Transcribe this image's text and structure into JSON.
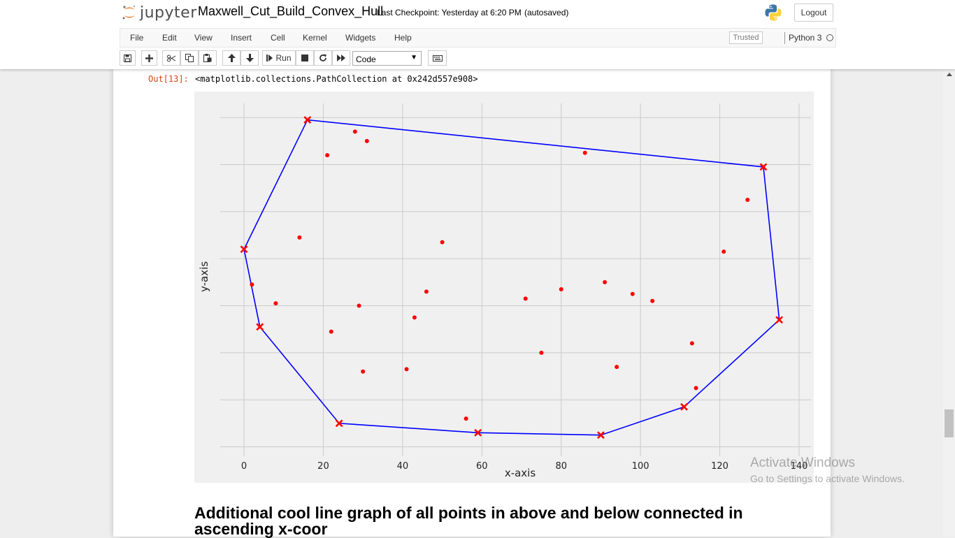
{
  "header": {
    "logo_text": "jupyter",
    "notebook_name": "Maxwell_Cut_Build_Convex_Hull",
    "checkpoint": "Last Checkpoint: Yesterday at 6:20 PM",
    "autosave_status": "(autosaved)",
    "logout_label": "Logout"
  },
  "menu": {
    "items": [
      "File",
      "Edit",
      "View",
      "Insert",
      "Cell",
      "Kernel",
      "Widgets",
      "Help"
    ],
    "trusted_label": "Trusted",
    "kernel_name": "Python 3"
  },
  "toolbar": {
    "run_label": "Run",
    "cell_type": "Code"
  },
  "output": {
    "prompt": "Out[13]:",
    "text": "<matplotlib.collections.PathCollection at 0x242d557e908>"
  },
  "chart_data": {
    "type": "scatter",
    "xlabel": "x-axis",
    "ylabel": "y-axis",
    "xlim": [
      -6,
      143
    ],
    "ylim": [
      -4,
      146
    ],
    "xticks": [
      0,
      20,
      40,
      60,
      80,
      100,
      120,
      140
    ],
    "yticks": [
      0,
      20,
      40,
      60,
      80,
      100,
      120,
      140
    ],
    "grid": true,
    "colors": {
      "points": "#ff0000",
      "hull": "#0000ff",
      "hull_markers": "#ff0000",
      "background": "#f0f0f0",
      "grid": "#cbcbcb"
    },
    "points": [
      [
        28,
        134
      ],
      [
        31,
        130
      ],
      [
        21,
        124
      ],
      [
        86,
        125
      ],
      [
        127,
        105
      ],
      [
        14,
        89
      ],
      [
        50,
        87
      ],
      [
        121,
        83
      ],
      [
        2,
        69
      ],
      [
        8,
        61
      ],
      [
        29,
        60
      ],
      [
        46,
        66
      ],
      [
        80,
        67
      ],
      [
        91,
        70
      ],
      [
        71,
        63
      ],
      [
        98,
        65
      ],
      [
        103,
        62
      ],
      [
        43,
        55
      ],
      [
        22,
        49
      ],
      [
        113,
        44
      ],
      [
        75,
        40
      ],
      [
        94,
        34
      ],
      [
        41,
        33
      ],
      [
        30,
        32
      ],
      [
        114,
        25
      ],
      [
        56,
        12
      ]
    ],
    "hull": [
      [
        0,
        84
      ],
      [
        16,
        139
      ],
      [
        131,
        119
      ],
      [
        135,
        54
      ],
      [
        111,
        17
      ],
      [
        90,
        5
      ],
      [
        59,
        6
      ],
      [
        24,
        10
      ],
      [
        4,
        51
      ],
      [
        0,
        84
      ]
    ]
  },
  "section": {
    "heading": "Additional cool line graph of all points in above and below connected in ascending x-coor"
  },
  "watermark": {
    "title": "Activate Windows",
    "subtitle": "Go to Settings to activate Windows."
  }
}
